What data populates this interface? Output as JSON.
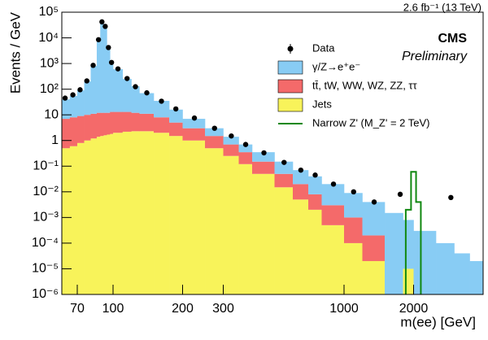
{
  "chart_data": {
    "type": "stacked-histogram",
    "title": "2.6 fb⁻¹ (13 TeV)",
    "experiment": "CMS",
    "subtitle": "Preliminary",
    "x_label": "m(ee) [GeV]",
    "y_label": "Events / GeV",
    "log_x": true,
    "log_y": true,
    "legend_position": "upper right",
    "xlim": [
      60,
      4000
    ],
    "ylim": [
      1e-06,
      100000
    ],
    "xticks": [
      70,
      100,
      200,
      300,
      1000,
      2000
    ],
    "yticks": [
      {
        "value": 1e-06,
        "label": "10⁻⁶"
      },
      {
        "value": 1e-05,
        "label": "10⁻⁵"
      },
      {
        "value": 0.0001,
        "label": "10⁻⁴"
      },
      {
        "value": 0.001,
        "label": "10⁻³"
      },
      {
        "value": 0.01,
        "label": "10⁻²"
      },
      {
        "value": 0.1,
        "label": "10⁻¹"
      },
      1,
      10,
      {
        "value": 100,
        "label": "10²"
      },
      {
        "value": 1000,
        "label": "10³"
      },
      {
        "value": 10000,
        "label": "10⁴"
      },
      {
        "value": 100000,
        "label": "10⁵"
      }
    ],
    "bins": [
      60,
      65,
      70,
      75,
      80,
      85,
      88,
      91,
      94,
      97,
      100,
      110,
      120,
      130,
      150,
      175,
      200,
      250,
      300,
      350,
      400,
      500,
      600,
      700,
      800,
      1000,
      1200,
      1500,
      1800,
      2000,
      2500,
      3000,
      3500,
      4000
    ],
    "series": [
      {
        "name": "γ/Z→e⁺e⁻",
        "color": "#88ccf4",
        "values": [
          33,
          47,
          81,
          190,
          789,
          7988,
          39988,
          29988,
          3988,
          1187,
          587,
          237,
          118,
          59,
          27,
          11,
          4,
          1.5,
          0.7,
          0.35,
          0.2,
          0.1,
          0.05,
          0.032,
          0.017,
          0.008,
          0.0038,
          0.0015,
          0.00079,
          0.0003,
          0.0001,
          4e-05,
          2e-05
        ]
      },
      {
        "name": "tt̄, tW, WW, WZ, ZZ, ττ",
        "color": "#f46a6a",
        "values": [
          6.5,
          7.4,
          8.2,
          9,
          9.8,
          10.6,
          10.5,
          10.4,
          10.3,
          11.2,
          11,
          10.8,
          9.7,
          8.7,
          6,
          3.5,
          2,
          1,
          0.45,
          0.23,
          0.1,
          0.035,
          0.015,
          0.006,
          0.0025,
          0.0009,
          0.00018,
          0,
          0,
          0,
          0,
          0,
          0
        ]
      },
      {
        "name": "Jets",
        "color": "#f8f35a",
        "values": [
          0.5,
          0.6,
          0.8,
          1,
          1.2,
          1.4,
          1.5,
          1.6,
          1.7,
          1.8,
          2,
          2.2,
          2.3,
          2.3,
          2,
          1.5,
          1,
          0.5,
          0.25,
          0.12,
          0.05,
          0.015,
          0.005,
          0.002,
          0.0005,
          0.0001,
          2e-05,
          0,
          1e-05,
          0,
          0,
          0,
          0
        ]
      }
    ],
    "data": {
      "name": "Data",
      "color": "#000000",
      "x": [
        62,
        67,
        72,
        77,
        82,
        86.5,
        89.5,
        92.5,
        95.5,
        98.5,
        105,
        115,
        125,
        140,
        162,
        187,
        225,
        275,
        325,
        375,
        450,
        550,
        650,
        750,
        900,
        1100,
        1350,
        1750,
        2900
      ],
      "values": [
        45,
        60,
        95,
        210,
        850,
        8500,
        42000,
        28000,
        4200,
        1100,
        620,
        260,
        125,
        72,
        34,
        17,
        7.5,
        3,
        1.5,
        0.7,
        0.33,
        0.14,
        0.07,
        0.045,
        0.02,
        0.01,
        0.004,
        0.008,
        0.006
      ]
    },
    "signal": {
      "name": "Narrow Z' (M_Z' = 2 TeV)",
      "color": "#118811",
      "bins": [
        1850,
        1950,
        2050,
        2150
      ],
      "values": [
        0.002,
        0.06,
        0.004
      ]
    }
  }
}
